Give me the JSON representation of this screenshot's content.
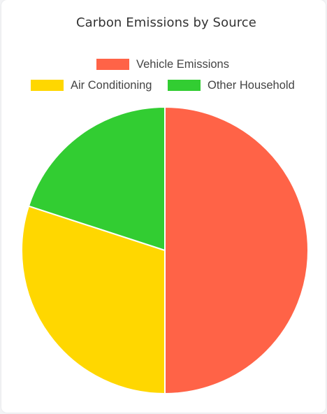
{
  "chart_data": {
    "type": "pie",
    "title": "Carbon Emissions by Source",
    "legend_position": "top",
    "categories": [
      "Vehicle Emissions",
      "Air Conditioning",
      "Other Household"
    ],
    "values": [
      50,
      30,
      20
    ],
    "colors": [
      "#FF6347",
      "#FFD700",
      "#32CD32"
    ]
  }
}
